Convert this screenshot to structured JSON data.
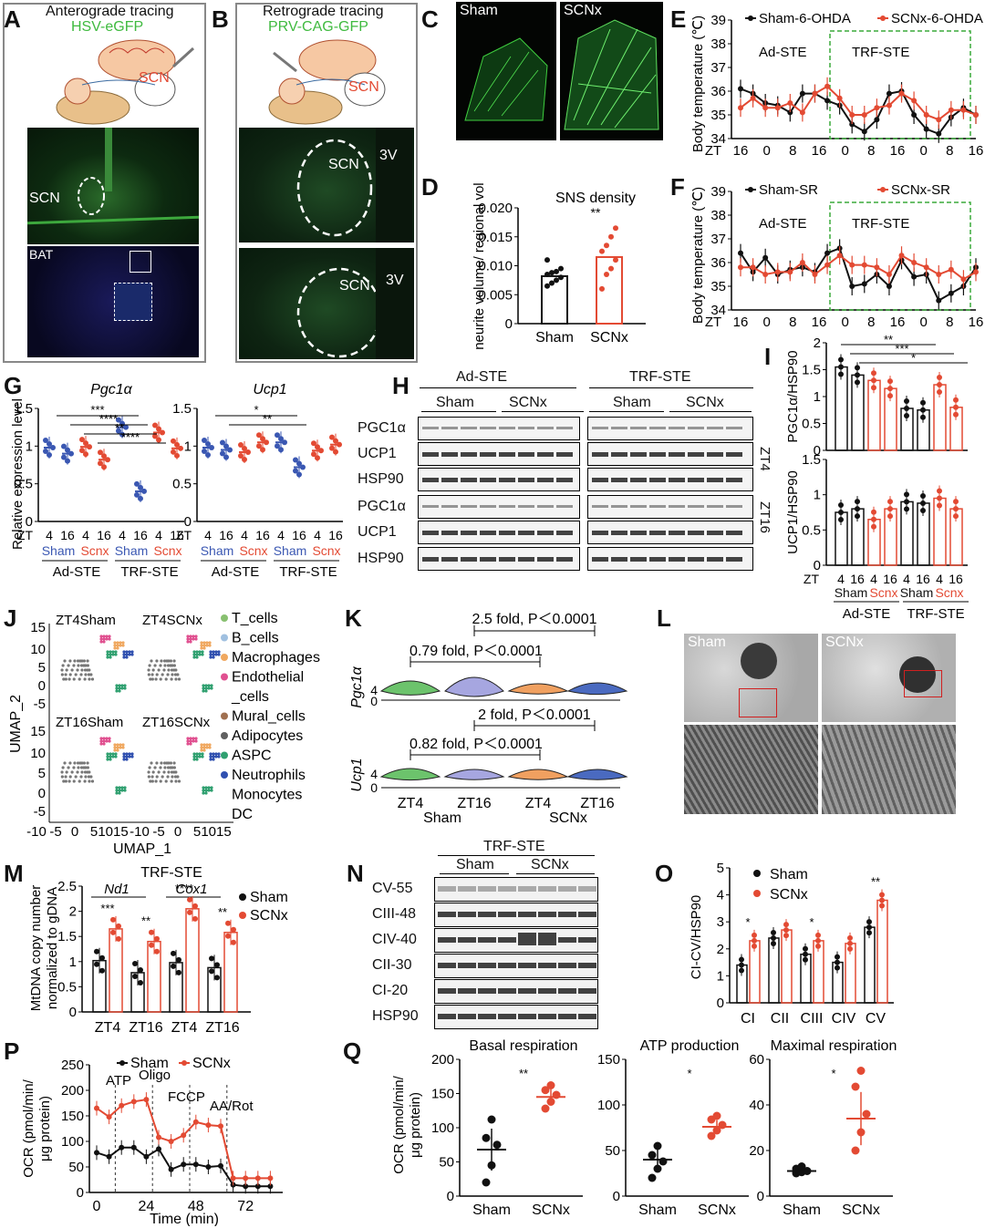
{
  "panels": {
    "A": {
      "label": "A",
      "title": "Anterograde tracing",
      "virus": "HSV-eGFP",
      "scn_label": "SCN",
      "tissue1": "SCN",
      "tissue2": "BAT"
    },
    "B": {
      "label": "B",
      "title": "Retrograde tracing",
      "virus": "PRV-CAG-GFP",
      "scn_label": "SCN",
      "t1_scn": "SCN",
      "t1_3v": "3V",
      "t2_scn": "SCN",
      "t2_3v": "3V"
    },
    "C": {
      "label": "C",
      "left": "Sham",
      "right": "SCNx"
    },
    "D": {
      "label": "D"
    },
    "E": {
      "label": "E"
    },
    "F": {
      "label": "F"
    },
    "G": {
      "label": "G"
    },
    "H": {
      "label": "H",
      "groups": [
        "Ad-STE",
        "TRF-STE"
      ],
      "sub": [
        "Sham",
        "SCNx",
        "Sham",
        "SCNx"
      ],
      "rows": [
        "PGC1α",
        "UCP1",
        "HSP90",
        "PGC1α",
        "UCP1",
        "HSP90"
      ],
      "zt": [
        "ZT4",
        "ZT16"
      ]
    },
    "I": {
      "label": "I"
    },
    "J": {
      "label": "J",
      "sub": [
        "ZT4Sham",
        "ZT4SCNx",
        "ZT16Sham",
        "ZT16SCNx"
      ],
      "legend": [
        "T_cells",
        "B_cells",
        "Macrophages",
        "Endothelial",
        "_cells",
        "Mural_cells",
        "Adipocytes",
        "ASPC",
        "Neutrophils",
        "Monocytes",
        "DC"
      ],
      "xlabel": "UMAP_1",
      "ylabel": "UMAP_2"
    },
    "K": {
      "label": "K",
      "ann1": "2.5 fold, P＜0.0001",
      "ann2": "0.79 fold, P＜0.0001",
      "ann3": "2 fold, P＜0.0001",
      "ann4": "0.82 fold, P＜0.0001",
      "gene1": "Pgc1α",
      "gene2": "Ucp1",
      "x": [
        "ZT4",
        "ZT16",
        "ZT4",
        "ZT16"
      ],
      "groups": [
        "Sham",
        "SCNx"
      ]
    },
    "L": {
      "label": "L",
      "left": "Sham",
      "right": "SCNx"
    },
    "M": {
      "label": "M"
    },
    "N": {
      "label": "N",
      "title": "TRF-STE",
      "sub": [
        "Sham",
        "SCNx"
      ],
      "rows": [
        "CV-55",
        "CIII-48",
        "CIV-40",
        "CII-30",
        "CI-20",
        "HSP90"
      ]
    },
    "O": {
      "label": "O"
    },
    "P": {
      "label": "P"
    },
    "Q": {
      "label": "Q"
    }
  },
  "chart_data": [
    {
      "id": "D",
      "type": "bar",
      "title": "SNS density",
      "categories": [
        "Sham",
        "SCNx"
      ],
      "values": [
        0.0082,
        0.0115
      ],
      "points": [
        [
          0.0065,
          0.007,
          0.0075,
          0.008,
          0.0085,
          0.0088,
          0.009,
          0.0095,
          0.011
        ],
        [
          0.006,
          0.0085,
          0.0095,
          0.011,
          0.0125,
          0.0135,
          0.015,
          0.0165
        ]
      ],
      "ylabel": "SNS neurite volume/ regional volume",
      "ylim": [
        0,
        0.02
      ],
      "yticks": [
        "0",
        "0.005",
        "0.010",
        "0.015",
        "0.020"
      ],
      "sig": "**"
    },
    {
      "id": "E",
      "type": "line",
      "ylabel": "Body temperature (℃)",
      "ylim": [
        34,
        39
      ],
      "yticks": [
        "34",
        "35",
        "36",
        "37",
        "38",
        "39"
      ],
      "xticks": [
        "ZT",
        "16",
        "0",
        "8",
        "16",
        "0",
        "8",
        "16",
        "0",
        "8",
        "16"
      ],
      "regions": [
        "Ad-STE",
        "TRF-STE"
      ],
      "series": [
        {
          "name": "Sham-6-OHDA",
          "color": "#111111",
          "values": [
            36.1,
            35.9,
            35.5,
            35.4,
            35.1,
            35.9,
            35.9,
            35.6,
            35.4,
            34.6,
            34.3,
            34.8,
            35.9,
            36.0,
            35.0,
            34.4,
            34.2,
            34.9,
            35.3,
            35.0
          ]
        },
        {
          "name": "SCNx-6-OHDA",
          "color": "#e34a33",
          "values": [
            35.3,
            35.7,
            35.3,
            35.3,
            35.5,
            35.1,
            35.9,
            36.2,
            35.7,
            35.0,
            35.0,
            35.3,
            35.4,
            35.9,
            35.6,
            35.0,
            34.8,
            35.2,
            35.2,
            35.0
          ]
        }
      ]
    },
    {
      "id": "F",
      "type": "line",
      "ylabel": "Body temperature (℃)",
      "ylim": [
        34,
        39
      ],
      "yticks": [
        "34",
        "35",
        "36",
        "37",
        "38",
        "39"
      ],
      "xticks": [
        "ZT",
        "16",
        "0",
        "8",
        "16",
        "0",
        "8",
        "16",
        "0",
        "8",
        "16"
      ],
      "regions": [
        "Ad-STE",
        "TRF-STE"
      ],
      "series": [
        {
          "name": "Sham-SR",
          "color": "#111111",
          "values": [
            36.4,
            35.6,
            36.2,
            35.5,
            35.7,
            35.8,
            35.6,
            36.4,
            36.6,
            35.0,
            35.1,
            35.5,
            35.0,
            36.1,
            35.4,
            35.5,
            34.4,
            34.7,
            35.0,
            35.8
          ]
        },
        {
          "name": "SCNx-SR",
          "color": "#e34a33",
          "values": [
            35.8,
            35.8,
            35.5,
            35.6,
            35.6,
            36.0,
            35.5,
            35.9,
            36.3,
            35.9,
            35.9,
            35.8,
            35.5,
            36.3,
            36.0,
            35.8,
            35.5,
            35.7,
            35.3,
            35.6
          ]
        }
      ]
    },
    {
      "id": "G1",
      "type": "scatter",
      "title": "Pgc1α",
      "ylabel": "Relative expression level",
      "ylim": [
        0,
        1.5
      ],
      "yticks": [
        "0",
        "0.5",
        "1",
        "1.5"
      ],
      "categories": [
        "4",
        "16",
        "4",
        "16",
        "4",
        "16",
        "4",
        "16"
      ],
      "values": [
        0.98,
        0.9,
        0.99,
        0.82,
        1.25,
        0.4,
        1.18,
        0.97
      ],
      "colors": [
        "#3a57b2",
        "#3a57b2",
        "#e34a33",
        "#e34a33",
        "#3a57b2",
        "#3a57b2",
        "#e34a33",
        "#e34a33"
      ],
      "sig": [
        "***",
        "****",
        "**",
        "****"
      ],
      "xgroups": [
        "Sham",
        "Scnx",
        "Sham",
        "Scnx"
      ],
      "phases": [
        "Ad-STE",
        "TRF-STE"
      ]
    },
    {
      "id": "G2",
      "type": "scatter",
      "title": "Ucp1",
      "ylim": [
        0,
        1.5
      ],
      "yticks": [
        "0",
        "0.5",
        "1",
        "1.5"
      ],
      "categories": [
        "4",
        "16",
        "4",
        "16",
        "4",
        "16",
        "4",
        "16"
      ],
      "values": [
        0.98,
        0.95,
        0.92,
        1.05,
        1.05,
        0.72,
        0.94,
        1.02
      ],
      "colors": [
        "#3a57b2",
        "#3a57b2",
        "#e34a33",
        "#e34a33",
        "#3a57b2",
        "#3a57b2",
        "#e34a33",
        "#e34a33"
      ],
      "sig": [
        "*",
        "**"
      ],
      "xgroups": [
        "Sham",
        "Scnx",
        "Sham",
        "Scnx"
      ],
      "phases": [
        "Ad-STE",
        "TRF-STE"
      ]
    },
    {
      "id": "I1",
      "type": "bar",
      "ylabel": "PGC1α/HSP90",
      "ylim": [
        0,
        2
      ],
      "yticks": [
        "0",
        "0.5",
        "1",
        "1.5",
        "2"
      ],
      "categories": [
        "4",
        "16",
        "4",
        "16",
        "4",
        "16",
        "4",
        "16"
      ],
      "values": [
        1.55,
        1.4,
        1.3,
        1.15,
        0.78,
        0.75,
        1.22,
        0.8
      ],
      "colors": [
        "#111111",
        "#111111",
        "#e34a33",
        "#e34a33",
        "#111111",
        "#111111",
        "#e34a33",
        "#e34a33"
      ],
      "sig": [
        "**",
        "***",
        "*"
      ]
    },
    {
      "id": "I2",
      "type": "bar",
      "ylabel": "UCP1/HSP90",
      "ylim": [
        0,
        1.5
      ],
      "yticks": [
        "0",
        "0.5",
        "1",
        "1.5"
      ],
      "categories": [
        "4",
        "16",
        "4",
        "16",
        "4",
        "16",
        "4",
        "16"
      ],
      "values": [
        0.75,
        0.8,
        0.65,
        0.8,
        0.9,
        0.88,
        0.95,
        0.8
      ],
      "colors": [
        "#111111",
        "#111111",
        "#e34a33",
        "#e34a33",
        "#111111",
        "#111111",
        "#e34a33",
        "#e34a33"
      ],
      "xgroups": [
        "Sham",
        "Scnx",
        "Sham",
        "Scnx"
      ],
      "phases": [
        "Ad-STE",
        "TRF-STE"
      ]
    },
    {
      "id": "M",
      "type": "bar",
      "title": "TRF-STE",
      "ylabel": "MtDNA copy number normalized to gDNA",
      "ylim": [
        0,
        2.5
      ],
      "yticks": [
        "0",
        "0.5",
        "1",
        "1.5",
        "2",
        "2.5"
      ],
      "genes": [
        "Nd1",
        "Cox1"
      ],
      "categories": [
        "ZT4",
        "ZT16",
        "ZT4",
        "ZT16"
      ],
      "series": [
        {
          "name": "Sham",
          "color": "#111111",
          "values": [
            1.02,
            0.78,
            0.98,
            0.88
          ]
        },
        {
          "name": "SCNx",
          "color": "#e34a33",
          "values": [
            1.65,
            1.4,
            2.05,
            1.58
          ]
        }
      ],
      "sig": [
        "***",
        "**",
        "****",
        "**"
      ]
    },
    {
      "id": "O",
      "type": "bar",
      "ylabel": "CI-CV/HSP90",
      "ylim": [
        0,
        5
      ],
      "yticks": [
        "0",
        "1",
        "2",
        "3",
        "4",
        "5"
      ],
      "categories": [
        "CI",
        "CII",
        "CIII",
        "CIV",
        "CV"
      ],
      "series": [
        {
          "name": "Sham",
          "color": "#111111",
          "values": [
            1.4,
            2.4,
            1.8,
            1.5,
            2.8
          ]
        },
        {
          "name": "SCNx",
          "color": "#e34a33",
          "values": [
            2.3,
            2.7,
            2.3,
            2.2,
            3.8
          ]
        }
      ],
      "sig": [
        "*",
        "",
        "*",
        "",
        "**"
      ]
    },
    {
      "id": "P",
      "type": "line",
      "ylabel": "OCR (pmol/min/ μg protein)",
      "xlabel": "Time (min)",
      "ylim": [
        0,
        250
      ],
      "yticks": [
        "0",
        "50",
        "100",
        "150",
        "200",
        "250"
      ],
      "xticks": [
        "0",
        "24",
        "48",
        "72"
      ],
      "annotations": [
        "ATP",
        "Oligo",
        "FCCP",
        "AA/Rot"
      ],
      "x": [
        0,
        6,
        12,
        18,
        24,
        30,
        36,
        42,
        48,
        54,
        60,
        66,
        72,
        78,
        84
      ],
      "series": [
        {
          "name": "Sham",
          "color": "#111111",
          "values": [
            78,
            70,
            88,
            88,
            70,
            85,
            45,
            55,
            55,
            50,
            52,
            15,
            12,
            12,
            12
          ]
        },
        {
          "name": "SCNx",
          "color": "#e34a33",
          "values": [
            165,
            148,
            170,
            178,
            182,
            108,
            100,
            112,
            138,
            132,
            130,
            28,
            28,
            28,
            28
          ]
        }
      ]
    },
    {
      "id": "Q1",
      "type": "scatter",
      "title": "Basal respiration",
      "ylabel": "OCR (pmol/min/ μg protein)",
      "ylim": [
        0,
        200
      ],
      "yticks": [
        "0",
        "50",
        "100",
        "150",
        "200"
      ],
      "categories": [
        "Sham",
        "SCNx"
      ],
      "values": [
        68,
        145
      ],
      "points": [
        [
          20,
          45,
          75,
          85,
          112
        ],
        [
          128,
          138,
          148,
          155,
          162
        ]
      ],
      "sig": "**"
    },
    {
      "id": "Q2",
      "type": "scatter",
      "title": "ATP production",
      "ylim": [
        0,
        150
      ],
      "yticks": [
        "0",
        "50",
        "100",
        "150"
      ],
      "categories": [
        "Sham",
        "SCNx"
      ],
      "values": [
        40,
        76
      ],
      "points": [
        [
          20,
          30,
          38,
          45,
          55
        ],
        [
          66,
          72,
          78,
          84,
          88
        ]
      ],
      "sig": "*"
    },
    {
      "id": "Q3",
      "type": "scatter",
      "title": "Maximal respiration",
      "ylim": [
        0,
        60
      ],
      "yticks": [
        "0",
        "20",
        "40",
        "60"
      ],
      "categories": [
        "Sham",
        "SCNx"
      ],
      "values": [
        11,
        34
      ],
      "points": [
        [
          10,
          10.5,
          11,
          12,
          13
        ],
        [
          20,
          28,
          36,
          48,
          55
        ]
      ],
      "sig": "*"
    }
  ]
}
